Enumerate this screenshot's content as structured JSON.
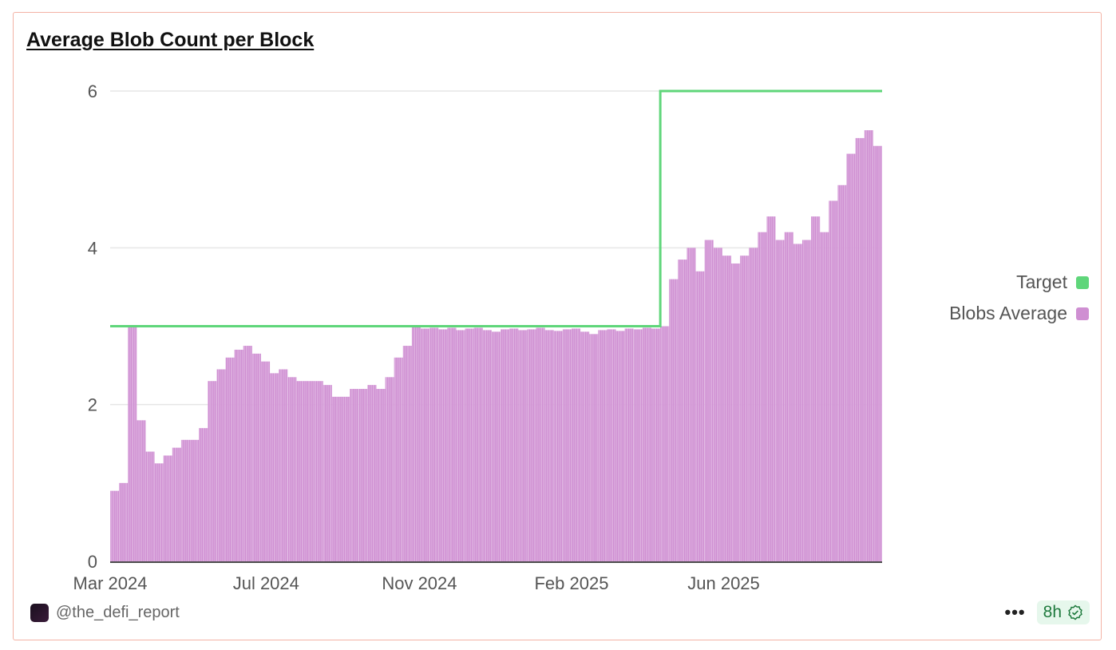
{
  "header": {
    "title": "Average Blob Count per Block"
  },
  "footer": {
    "author": "@the_defi_report",
    "more_label": "•••",
    "freshness": "8h",
    "freshness_icon": "verified-badge-icon"
  },
  "colors": {
    "target": "#5fd67a",
    "blobs": "#cf8fd2",
    "border": "#f3b2a4"
  },
  "chart_data": {
    "type": "bar",
    "title": "Average Blob Count per Block",
    "xlabel": "",
    "ylabel": "",
    "ylim": [
      0,
      6
    ],
    "yticks": [
      0,
      2,
      4,
      6
    ],
    "grid": true,
    "legend_position": "right",
    "xticks": [
      {
        "label": "Mar 2024",
        "date": "2024-03-01"
      },
      {
        "label": "Jul 2024",
        "date": "2024-07-02"
      },
      {
        "label": "Nov 2024",
        "date": "2024-10-31"
      },
      {
        "label": "Feb 2025",
        "date": "2025-02-28"
      },
      {
        "label": "Jun 2025",
        "date": "2025-06-28"
      }
    ],
    "categories": [
      "2024-03-01",
      "2024-03-08",
      "2024-03-15",
      "2024-03-22",
      "2024-03-29",
      "2024-04-05",
      "2024-04-12",
      "2024-04-19",
      "2024-04-26",
      "2024-05-03",
      "2024-05-10",
      "2024-05-17",
      "2024-05-24",
      "2024-05-31",
      "2024-06-07",
      "2024-06-14",
      "2024-06-21",
      "2024-06-28",
      "2024-07-05",
      "2024-07-12",
      "2024-07-19",
      "2024-07-26",
      "2024-08-02",
      "2024-08-09",
      "2024-08-16",
      "2024-08-23",
      "2024-08-30",
      "2024-09-06",
      "2024-09-13",
      "2024-09-20",
      "2024-09-27",
      "2024-10-04",
      "2024-10-11",
      "2024-10-18",
      "2024-10-25",
      "2024-11-01",
      "2024-11-08",
      "2024-11-15",
      "2024-11-22",
      "2024-11-29",
      "2024-12-06",
      "2024-12-13",
      "2024-12-20",
      "2024-12-27",
      "2025-01-03",
      "2025-01-10",
      "2025-01-17",
      "2025-01-24",
      "2025-01-31",
      "2025-02-07",
      "2025-02-14",
      "2025-02-21",
      "2025-02-28",
      "2025-03-07",
      "2025-03-14",
      "2025-03-21",
      "2025-03-28",
      "2025-04-04",
      "2025-04-11",
      "2025-04-18",
      "2025-04-25",
      "2025-05-02",
      "2025-05-09",
      "2025-05-16",
      "2025-05-23",
      "2025-05-30",
      "2025-06-06",
      "2025-06-13",
      "2025-06-20",
      "2025-06-27",
      "2025-07-04",
      "2025-07-11",
      "2025-07-18",
      "2025-07-25",
      "2025-08-01",
      "2025-08-08",
      "2025-08-15",
      "2025-08-22",
      "2025-08-29",
      "2025-09-05",
      "2025-09-12",
      "2025-09-19",
      "2025-09-26",
      "2025-10-03",
      "2025-10-10",
      "2025-10-17",
      "2025-10-24"
    ],
    "series": [
      {
        "name": "Target",
        "type": "line",
        "values": [
          3,
          3,
          3,
          3,
          3,
          3,
          3,
          3,
          3,
          3,
          3,
          3,
          3,
          3,
          3,
          3,
          3,
          3,
          3,
          3,
          3,
          3,
          3,
          3,
          3,
          3,
          3,
          3,
          3,
          3,
          3,
          3,
          3,
          3,
          3,
          3,
          3,
          3,
          3,
          3,
          3,
          3,
          3,
          3,
          3,
          3,
          3,
          3,
          3,
          3,
          3,
          3,
          3,
          3,
          3,
          3,
          3,
          3,
          3,
          3,
          3,
          3,
          6,
          6,
          6,
          6,
          6,
          6,
          6,
          6,
          6,
          6,
          6,
          6,
          6,
          6,
          6,
          6,
          6,
          6,
          6,
          6,
          6,
          6,
          6,
          6,
          6
        ]
      },
      {
        "name": "Blobs Average",
        "type": "bar",
        "values": [
          0.9,
          1.0,
          3.0,
          1.8,
          1.4,
          1.25,
          1.35,
          1.45,
          1.55,
          1.55,
          1.7,
          2.3,
          2.45,
          2.6,
          2.7,
          2.75,
          2.65,
          2.55,
          2.4,
          2.45,
          2.35,
          2.3,
          2.3,
          2.3,
          2.25,
          2.1,
          2.1,
          2.2,
          2.2,
          2.25,
          2.2,
          2.35,
          2.6,
          2.75,
          3.0,
          2.97,
          2.98,
          2.96,
          2.98,
          2.95,
          2.97,
          2.98,
          2.95,
          2.93,
          2.96,
          2.97,
          2.95,
          2.96,
          2.98,
          2.95,
          2.94,
          2.96,
          2.97,
          2.93,
          2.9,
          2.95,
          2.96,
          2.94,
          2.97,
          2.96,
          2.98,
          2.97,
          3.0,
          3.6,
          3.85,
          4.0,
          3.7,
          4.1,
          4.0,
          3.9,
          3.8,
          3.9,
          4.0,
          4.2,
          4.4,
          4.1,
          4.2,
          4.05,
          4.1,
          4.4,
          4.2,
          4.6,
          4.8,
          5.2,
          5.4,
          5.5,
          5.3
        ]
      }
    ]
  }
}
